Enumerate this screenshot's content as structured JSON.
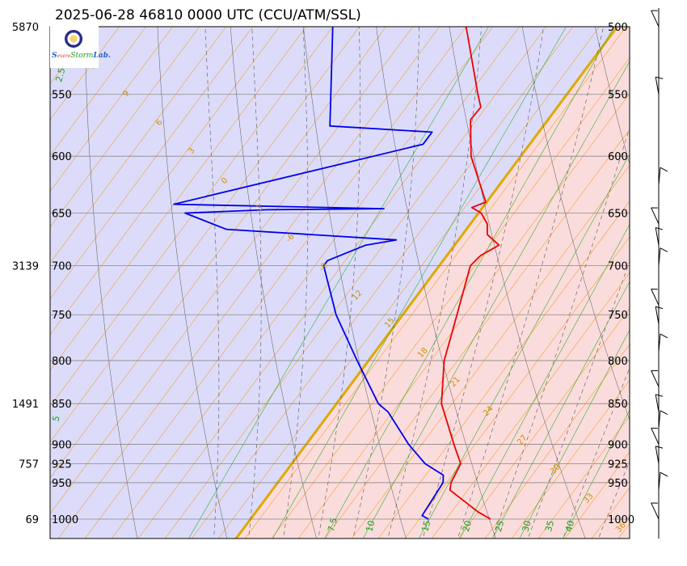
{
  "header": {
    "title": "2025-06-28 46810 0000 UTC (CCU/ATM/SSL)"
  },
  "logo": {
    "text_a": "S",
    "text_b": "evere",
    "text_c": "Lab.",
    "text_d": "Storm"
  },
  "colors": {
    "background_cold": "#dcdcfa",
    "background_warm": "#fbdcdc",
    "isotherm": "#f0a030",
    "zero_isotherm": "#e0a800",
    "dry_adiabat": "#555555",
    "moist_adiabat": "#555555",
    "mixing_ratio": "#30b030",
    "temperature": "#ee0000",
    "dewpoint": "#0000ee",
    "isobar": "#888888"
  },
  "chart_data": {
    "type": "skew-t log-p",
    "title": "2025-06-28 46810 0000 UTC (CCU/ATM/SSL)",
    "pressure_range_hPa": [
      1000,
      500
    ],
    "pressure_levels": [
      "500",
      "550",
      "600",
      "650",
      "700",
      "750",
      "800",
      "850",
      "900",
      "925",
      "950",
      "1000"
    ],
    "height_labels": [
      {
        "pressure": 500,
        "height": "5870"
      },
      {
        "pressure": 700,
        "height": "3139"
      },
      {
        "pressure": 850,
        "height": "1491"
      },
      {
        "pressure": 925,
        "height": "757"
      },
      {
        "pressure": 1000,
        "height": "69"
      }
    ],
    "temperature_ticks": [
      "7.5",
      "10",
      "15",
      "20",
      "25",
      "30",
      "35",
      "40"
    ],
    "isotherm_labels": [
      "15",
      "12",
      "9",
      "6",
      "3",
      "0",
      "-3",
      "-6",
      "-9",
      "12",
      "15",
      "18",
      "21",
      "24",
      "27",
      "30",
      "33",
      "36"
    ],
    "mixing_ratio_labels": [
      "2.5",
      "5"
    ],
    "temperature_profile": [
      {
        "p": 1000,
        "t": 27.0
      },
      {
        "p": 990,
        "t": 25.0
      },
      {
        "p": 960,
        "t": 20.0
      },
      {
        "p": 950,
        "t": 19.5
      },
      {
        "p": 925,
        "t": 19.0
      },
      {
        "p": 900,
        "t": 16.6
      },
      {
        "p": 850,
        "t": 11.8
      },
      {
        "p": 800,
        "t": 8.5
      },
      {
        "p": 750,
        "t": 6.1
      },
      {
        "p": 700,
        "t": 3.5
      },
      {
        "p": 690,
        "t": 3.8
      },
      {
        "p": 680,
        "t": 5.0
      },
      {
        "p": 670,
        "t": 2.8
      },
      {
        "p": 660,
        "t": 1.9
      },
      {
        "p": 650,
        "t": 0.3
      },
      {
        "p": 645,
        "t": -1.2
      },
      {
        "p": 640,
        "t": -0.1
      },
      {
        "p": 600,
        "t": -5.6
      },
      {
        "p": 570,
        "t": -8.7
      },
      {
        "p": 560,
        "t": -8.6
      },
      {
        "p": 550,
        "t": -10.0
      },
      {
        "p": 500,
        "t": -17.0
      }
    ],
    "dewpoint_profile": [
      {
        "p": 1000,
        "t": 20.0
      },
      {
        "p": 995,
        "t": 19.0
      },
      {
        "p": 950,
        "t": 18.6
      },
      {
        "p": 940,
        "t": 18.0
      },
      {
        "p": 925,
        "t": 15.0
      },
      {
        "p": 900,
        "t": 11.5
      },
      {
        "p": 860,
        "t": 6.5
      },
      {
        "p": 850,
        "t": 4.7
      },
      {
        "p": 800,
        "t": -1.3
      },
      {
        "p": 750,
        "t": -7.5
      },
      {
        "p": 700,
        "t": -13.0
      },
      {
        "p": 695,
        "t": -13.0
      },
      {
        "p": 680,
        "t": -10.0
      },
      {
        "p": 675,
        "t": -7.0
      },
      {
        "p": 665,
        "t": -27.0
      },
      {
        "p": 650,
        "t": -33.0
      },
      {
        "p": 647,
        "t": -24.0
      },
      {
        "p": 646,
        "t": -11.0
      },
      {
        "p": 642,
        "t": -35.0
      },
      {
        "p": 590,
        "t": -12.0
      },
      {
        "p": 580,
        "t": -12.0
      },
      {
        "p": 575,
        "t": -24.0
      },
      {
        "p": 500,
        "t": -32.0
      }
    ],
    "wind_barbs": [
      {
        "p": 500,
        "spd_kt": 10
      },
      {
        "p": 550,
        "spd_kt": 10
      },
      {
        "p": 625,
        "spd_kt": 10
      },
      {
        "p": 660,
        "spd_kt": 10
      },
      {
        "p": 680,
        "spd_kt": 10
      },
      {
        "p": 700,
        "spd_kt": 10
      },
      {
        "p": 740,
        "spd_kt": 10
      },
      {
        "p": 760,
        "spd_kt": 10
      },
      {
        "p": 790,
        "spd_kt": 10
      },
      {
        "p": 830,
        "spd_kt": 10
      },
      {
        "p": 860,
        "spd_kt": 10
      },
      {
        "p": 880,
        "spd_kt": 10
      },
      {
        "p": 900,
        "spd_kt": 10
      },
      {
        "p": 925,
        "spd_kt": 10
      },
      {
        "p": 960,
        "spd_kt": 10
      },
      {
        "p": 1000,
        "spd_kt": 10
      }
    ]
  }
}
